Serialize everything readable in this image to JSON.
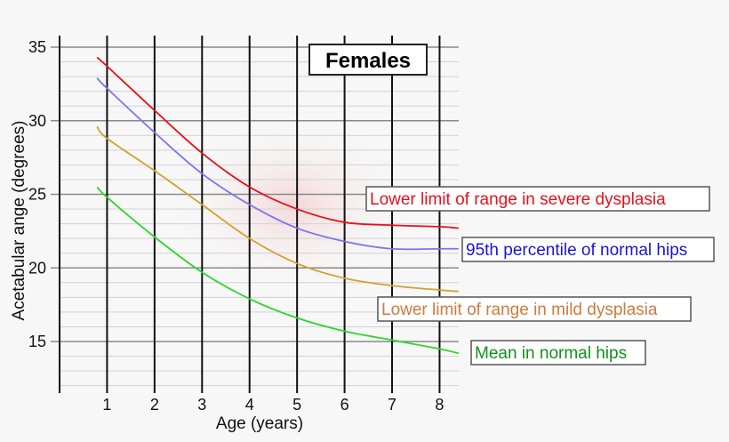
{
  "chart_data": {
    "type": "line",
    "title": "Females",
    "xlabel": "Age (years)",
    "ylabel": "Acetabular ange (degrees)",
    "xlim": [
      0,
      8.4
    ],
    "ylim": [
      12,
      35.8
    ],
    "x_ticks": [
      1,
      2,
      3,
      4,
      5,
      6,
      7,
      8
    ],
    "y_ticks": [
      15,
      20,
      25,
      30,
      35
    ],
    "grid": {
      "vertical_major": true,
      "horizontal_minor_step": 1
    },
    "series": [
      {
        "name": "Lower limit of range in severe dysplasia",
        "color": "#e8101a",
        "x": [
          0.79,
          1,
          2,
          3,
          4,
          5,
          6,
          7,
          8,
          8.4
        ],
        "y": [
          34.3,
          33.7,
          30.7,
          27.8,
          25.5,
          24.0,
          23.1,
          22.9,
          22.8,
          22.7
        ]
      },
      {
        "name": "95th percentile of normal hips",
        "color": "#7b74f2",
        "label_color": "#1a14d6",
        "x": [
          0.79,
          1,
          2,
          3,
          4,
          5,
          6,
          7,
          8,
          8.4
        ],
        "y": [
          32.9,
          32.2,
          29.2,
          26.4,
          24.3,
          22.7,
          21.8,
          21.3,
          21.3,
          21.3
        ]
      },
      {
        "name": "Lower limit of range in mild dysplasia",
        "color": "#d4a12a",
        "label_color": "#d07a3c",
        "x": [
          0.79,
          1,
          2,
          3,
          4,
          5,
          6,
          7,
          8,
          8.4
        ],
        "y": [
          29.6,
          28.8,
          26.6,
          24.3,
          22.0,
          20.3,
          19.3,
          18.8,
          18.5,
          18.4
        ]
      },
      {
        "name": "Mean in normal hips",
        "color": "#2ed62a",
        "label_color": "#11901a",
        "x": [
          0.79,
          1,
          2,
          3,
          4,
          5,
          6,
          7,
          8,
          8.4
        ],
        "y": [
          25.5,
          24.8,
          22.1,
          19.7,
          17.9,
          16.6,
          15.7,
          15.1,
          14.5,
          14.2
        ]
      }
    ]
  }
}
